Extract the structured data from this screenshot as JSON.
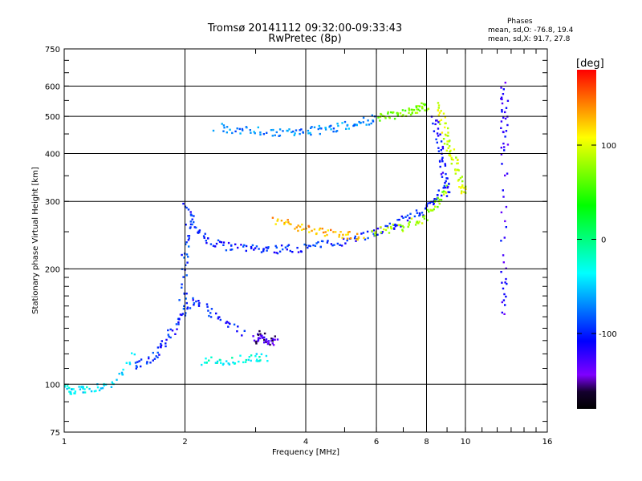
{
  "chart_data": {
    "type": "scatter",
    "title": "Tromsø 20141112 09:32:00-09:33:43",
    "subtitle": "RwPretec (8p)",
    "xlabel": "Frequency [MHz]",
    "ylabel": "Stationary phase Virtual Height [km]",
    "xscale": "log",
    "yscale": "log",
    "xlim": [
      1,
      16
    ],
    "ylim": [
      75,
      750
    ],
    "xticks": [
      1,
      2,
      4,
      6,
      8,
      10,
      16
    ],
    "yticks": [
      75,
      100,
      200,
      300,
      400,
      500,
      600,
      750
    ],
    "grid": true,
    "phase_stats": {
      "heading": "Phases",
      "o_line": "mean, sd,O: -76.8, 19.4",
      "x_line": "mean, sd,X:  91.7, 27.8"
    },
    "colorbar": {
      "label": "[deg]",
      "ticks": [
        100,
        0,
        -100
      ],
      "range": [
        -180,
        180
      ]
    },
    "traces": [
      {
        "x": [
          2.02,
          2.1,
          2.3,
          2.6,
          3.0,
          3.4,
          3.9,
          4.5,
          5.2,
          6.0,
          6.8,
          7.6,
          8.3,
          8.9
        ],
        "y": [
          290,
          260,
          235,
          228,
          225,
          225,
          227,
          232,
          240,
          250,
          262,
          278,
          300,
          330
        ],
        "phase": -100
      },
      {
        "x": [
          3.3,
          3.8,
          4.3,
          4.9,
          5.6
        ],
        "y": [
          268,
          258,
          250,
          246,
          244
        ],
        "phase": 130
      },
      {
        "x": [
          5.8,
          6.8,
          7.7,
          8.4,
          9.0
        ],
        "y": [
          248,
          256,
          268,
          290,
          330
        ],
        "phase": 80
      },
      {
        "x": [
          2.4,
          2.8,
          3.3,
          3.8,
          4.3,
          4.8,
          5.4,
          6.0
        ],
        "y": [
          470,
          460,
          455,
          455,
          460,
          468,
          480,
          495
        ],
        "phase": -70
      },
      {
        "x": [
          6.0,
          6.6,
          7.2,
          7.7,
          8.0
        ],
        "y": [
          495,
          505,
          515,
          525,
          535
        ],
        "phase": 70
      },
      {
        "x": [
          8.6,
          8.8,
          9.1,
          9.4,
          9.7,
          9.9
        ],
        "y": [
          540,
          470,
          420,
          380,
          340,
          310
        ],
        "phase": 95
      },
      {
        "x": [
          8.4,
          8.6,
          8.8,
          9.0
        ],
        "y": [
          500,
          420,
          360,
          310
        ],
        "phase": -110
      },
      {
        "x": [
          1.5,
          1.65,
          1.8,
          1.95,
          2.1,
          2.4,
          2.8
        ],
        "y": [
          112,
          118,
          130,
          150,
          165,
          150,
          135
        ],
        "phase": -100
      },
      {
        "x": [
          2.2,
          2.5,
          2.9,
          3.2
        ],
        "y": [
          115,
          115,
          117,
          118
        ],
        "phase": -30
      },
      {
        "x": [
          1.0,
          1.05,
          1.15,
          1.3,
          1.5
        ],
        "y": [
          98,
          96,
          97,
          100,
          120
        ],
        "phase": -40
      },
      {
        "x": [
          3.0,
          3.1,
          3.2,
          3.35
        ],
        "y": [
          130,
          135,
          128,
          132
        ],
        "phase": -140
      },
      {
        "x": [
          1.97,
          2.0,
          2.03
        ],
        "y": [
          160,
          210,
          260
        ],
        "phase": -95
      },
      {
        "x": [
          12.5,
          12.5,
          12.5,
          12.5,
          12.5
        ],
        "y": [
          600,
          500,
          400,
          200,
          150
        ],
        "phase": -120
      }
    ]
  }
}
